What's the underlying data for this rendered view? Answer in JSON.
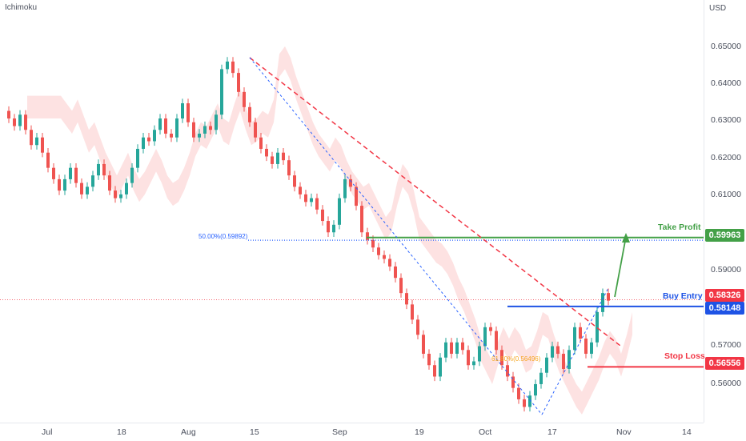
{
  "chart": {
    "indicator": "Ichimoku",
    "currency": "USD"
  },
  "chart_data": {
    "type": "candlestick",
    "y_axis_ticks": [
      "0.65000",
      "0.64000",
      "0.63000",
      "0.62000",
      "0.61000",
      "0.59000",
      "0.57000",
      "0.56000"
    ],
    "ylim": [
      0.5515,
      0.658
    ],
    "x_axis_ticks": [
      "Jul",
      "18",
      "Aug",
      "15",
      "Sep",
      "19",
      "Oct",
      "17",
      "Nov",
      "14"
    ],
    "levels": {
      "take_profit": {
        "label": "Take Profit",
        "value": "0.59963",
        "color": "#43a047"
      },
      "buy_entry": {
        "label": "Buy Entry",
        "value": "0.58148",
        "color": "#1e53e5"
      },
      "stop_loss": {
        "label": "Stop Loss",
        "value": "0.56556",
        "color": "#f23645"
      },
      "last_price": {
        "value": "0.58326",
        "color": "#f23645"
      }
    },
    "fib_levels": [
      {
        "label": "50.00%(0.59892)",
        "color": "#2962ff"
      },
      {
        "label": "61.80%(0.56496)",
        "color": "#f5a623"
      }
    ],
    "price_path": [
      0.633,
      0.631,
      0.629,
      0.632,
      0.628,
      0.624,
      0.626,
      0.622,
      0.618,
      0.615,
      0.612,
      0.615,
      0.618,
      0.614,
      0.611,
      0.613,
      0.616,
      0.619,
      0.616,
      0.612,
      0.61,
      0.611,
      0.614,
      0.618,
      0.623,
      0.626,
      0.625,
      0.628,
      0.631,
      0.627,
      0.626,
      0.631,
      0.635,
      0.63,
      0.626,
      0.627,
      0.629,
      0.628,
      0.632,
      0.644,
      0.646,
      0.643,
      0.638,
      0.634,
      0.63,
      0.626,
      0.623,
      0.621,
      0.619,
      0.622,
      0.62,
      0.616,
      0.613,
      0.611,
      0.609,
      0.61,
      0.607,
      0.604,
      0.601,
      0.603,
      0.61,
      0.615,
      0.613,
      0.608,
      0.601,
      0.599,
      0.597,
      0.595,
      0.594,
      0.592,
      0.589,
      0.585,
      0.582,
      0.578,
      0.574,
      0.569,
      0.566,
      0.563,
      0.568,
      0.572,
      0.569,
      0.572,
      0.57,
      0.566,
      0.567,
      0.571,
      0.576,
      0.575,
      0.57,
      0.566,
      0.563,
      0.56,
      0.557,
      0.555,
      0.558,
      0.561,
      0.564,
      0.568,
      0.571,
      0.569,
      0.565,
      0.57,
      0.576,
      0.573,
      0.569,
      0.572,
      0.58,
      0.585,
      0.583
    ],
    "colors": {
      "up": "#26a69a",
      "down": "#ef5350",
      "cloud_bear": "#fccbcb",
      "cloud_bull": "#c8e6c9"
    }
  }
}
